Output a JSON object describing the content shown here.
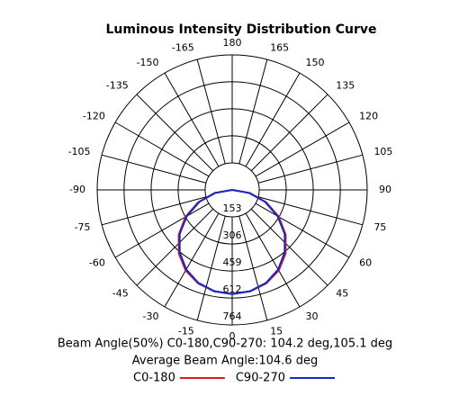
{
  "chart_data": {
    "type": "polar",
    "title": "Luminous Intensity Distribution Curve",
    "annotations": [
      "Beam Angle(50%) C0-180,C90-270: 104.2 deg,105.1 deg",
      "Average Beam Angle:104.6 deg"
    ],
    "theta_zero_location": "S",
    "theta_direction": "counterclockwise",
    "thetaticks": [
      0,
      15,
      30,
      45,
      60,
      75,
      90,
      105,
      120,
      135,
      150,
      165,
      180,
      -15,
      -30,
      -45,
      -60,
      -75,
      -90,
      -105,
      -120,
      -135,
      -150,
      -165
    ],
    "rlim": [
      0,
      764
    ],
    "rticks": [
      153,
      306,
      459,
      612,
      764
    ],
    "theta": [
      -90,
      -80,
      -70,
      -60,
      -50,
      -40,
      -30,
      -20,
      -10,
      0,
      10,
      20,
      30,
      40,
      50,
      60,
      70,
      80,
      90
    ],
    "series": [
      {
        "name": "C0-180",
        "color": "#e8141e",
        "values": [
          0,
          102,
          205,
          305,
          395,
          470,
          527,
          563,
          583,
          588,
          583,
          563,
          527,
          470,
          395,
          305,
          205,
          102,
          0
        ]
      },
      {
        "name": "C90-270",
        "color": "#1428c8",
        "values": [
          0,
          96,
          198,
          296,
          388,
          462,
          520,
          560,
          582,
          590,
          582,
          560,
          520,
          462,
          388,
          296,
          198,
          96,
          0
        ]
      }
    ]
  }
}
